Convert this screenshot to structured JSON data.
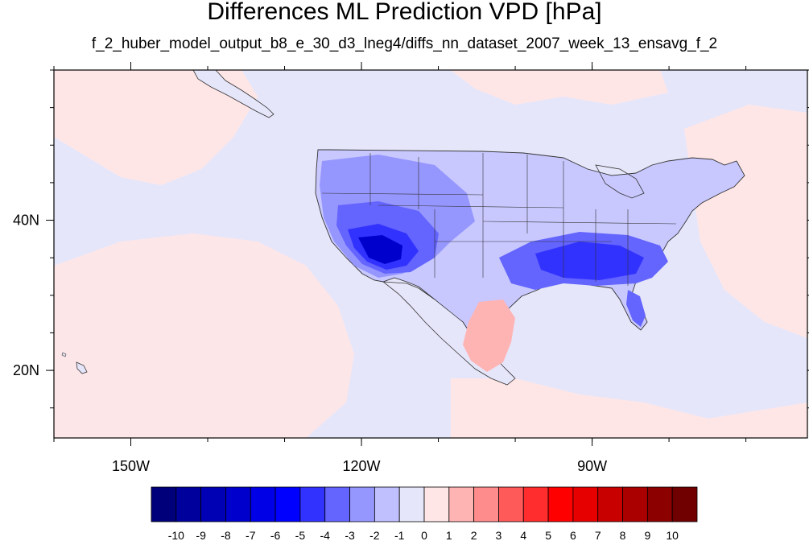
{
  "title": "Differences ML Prediction VPD [hPa]",
  "subtitle": "f_2_huber_model_output_b8_e_30_d3_lneg4/diffs_nn_dataset_2007_week_13_ensavg_f_2",
  "map": {
    "lon_range": [
      -160,
      -62
    ],
    "lat_range": [
      11,
      60
    ],
    "x_ticks": [
      {
        "lon": -150,
        "label": "150W"
      },
      {
        "lon": -120,
        "label": "120W"
      },
      {
        "lon": -90,
        "label": "90W"
      }
    ],
    "y_ticks": [
      {
        "lat": 40,
        "label": "40N"
      },
      {
        "lat": 20,
        "label": "20N"
      }
    ],
    "background_color": "#e6e6fa"
  },
  "colorbar": {
    "levels": [
      "-10",
      "-9",
      "-8",
      "-7",
      "-6",
      "-5",
      "-4",
      "-3",
      "-2",
      "-1",
      "0",
      "1",
      "2",
      "3",
      "4",
      "5",
      "6",
      "7",
      "8",
      "9",
      "10"
    ],
    "colors": [
      "#00007a",
      "#00009c",
      "#0000b4",
      "#0000cc",
      "#0000e6",
      "#0000ff",
      "#3232ff",
      "#6464ff",
      "#9696ff",
      "#c0c0ff",
      "#e6e6fa",
      "#ffe6e6",
      "#ffb4b4",
      "#ff8c8c",
      "#ff5a5a",
      "#ff2d2d",
      "#ff0000",
      "#e60000",
      "#c80000",
      "#aa0000",
      "#8c0000",
      "#700000"
    ]
  }
}
